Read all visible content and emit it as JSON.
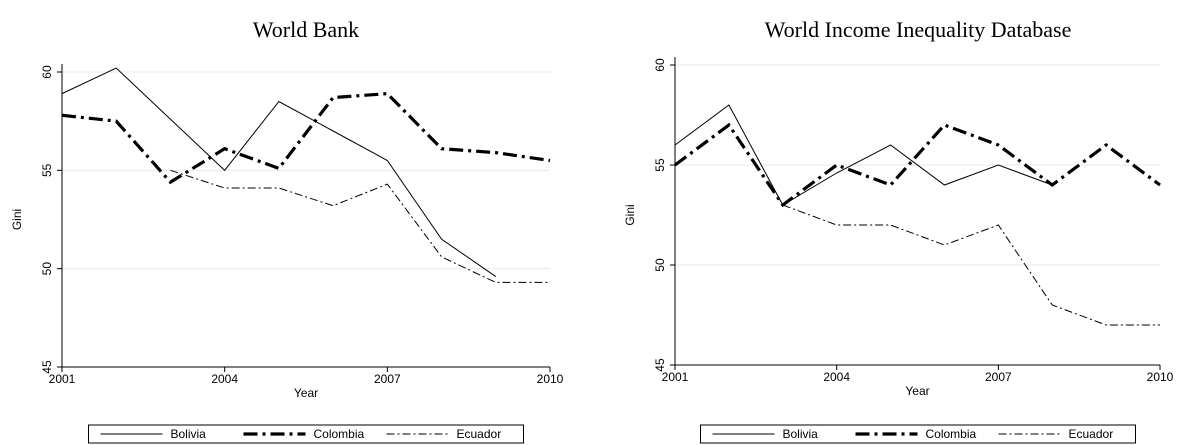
{
  "chart_data": [
    {
      "type": "line",
      "title": "World Bank",
      "x_label": "Year",
      "y_label": "Gini",
      "x": [
        2001,
        2002,
        2003,
        2004,
        2005,
        2006,
        2007,
        2008,
        2009,
        2010
      ],
      "xlim": [
        2001,
        2010
      ],
      "xticks": [
        2001,
        2004,
        2007,
        2010
      ],
      "ylim": [
        45,
        60
      ],
      "yticks": [
        45,
        50,
        55,
        60
      ],
      "grid": true,
      "series": [
        {
          "name": "Bolivia",
          "color": "#000000",
          "values": [
            58.9,
            60.2,
            57.6,
            55.0,
            58.5,
            57.0,
            55.5,
            51.5,
            49.6,
            null
          ]
        },
        {
          "name": "Colombia",
          "color": "#000000",
          "values": [
            57.8,
            57.5,
            54.4,
            56.1,
            55.1,
            58.7,
            58.9,
            56.1,
            55.9,
            55.5
          ]
        },
        {
          "name": "Ecuador",
          "color": "#000000",
          "values": [
            null,
            null,
            55.0,
            54.1,
            54.1,
            53.2,
            54.3,
            50.6,
            49.3,
            49.3
          ]
        }
      ]
    },
    {
      "type": "line",
      "title": "World Income Inequality Database",
      "x_label": "Year",
      "y_label": "Gini",
      "x": [
        2001,
        2002,
        2003,
        2004,
        2005,
        2006,
        2007,
        2008,
        2009,
        2010
      ],
      "xlim": [
        2001,
        2010
      ],
      "xticks": [
        2001,
        2004,
        2007,
        2010
      ],
      "ylim": [
        45,
        60
      ],
      "yticks": [
        45,
        50,
        55,
        60
      ],
      "grid": true,
      "series": [
        {
          "name": "Bolivia",
          "color": "#000000",
          "values": [
            56,
            58,
            53,
            54.6,
            56,
            54,
            55,
            54,
            null,
            null
          ]
        },
        {
          "name": "Colombia",
          "color": "#000000",
          "values": [
            55,
            57,
            53,
            55,
            54,
            57,
            56,
            54,
            56,
            54
          ]
        },
        {
          "name": "Ecuador",
          "color": "#000000",
          "values": [
            null,
            null,
            53,
            52,
            52,
            51,
            52,
            48,
            47,
            47
          ]
        }
      ]
    }
  ]
}
